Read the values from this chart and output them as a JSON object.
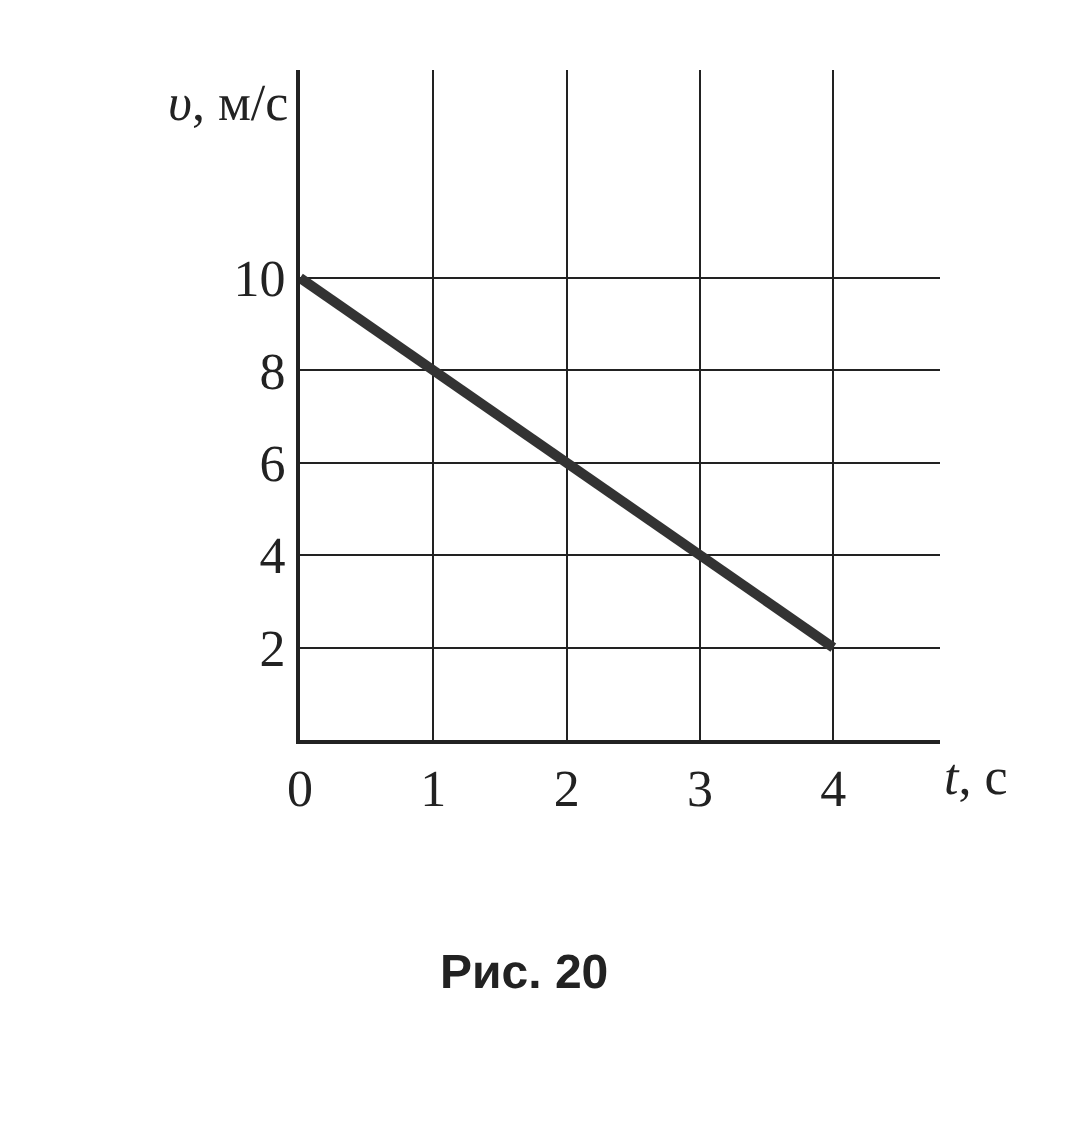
{
  "chart_data": {
    "type": "line",
    "xlabel": "t, с",
    "ylabel": "υ, м/с",
    "x": [
      0,
      4
    ],
    "series": [
      {
        "color": "#333333",
        "values": [
          10,
          2
        ]
      }
    ],
    "xlim": [
      0,
      4.8
    ],
    "ylim": [
      0,
      14.5
    ],
    "xticks": [
      0,
      1,
      2,
      3,
      4
    ],
    "yticks": [
      {
        "value": 0,
        "label": null
      },
      2,
      4,
      6,
      8,
      10
    ],
    "grid": true,
    "legend": false,
    "marker": "none",
    "line_style": "solid",
    "annotations": [
      "Рис. 20"
    ]
  }
}
